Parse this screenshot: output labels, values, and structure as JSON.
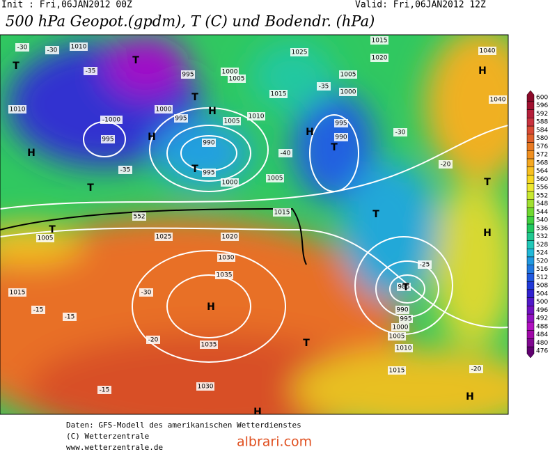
{
  "header": {
    "init": "Init : Fri,06JAN2012 00Z",
    "valid": "Valid: Fri,06JAN2012 12Z",
    "title": "500 hPa Geopot.(gpdm), T (C) und Bodendr. (hPa)"
  },
  "map_labels": [
    "1010",
    "-30",
    "-30",
    "-35",
    "995",
    "1000",
    "1005",
    "1015",
    "1025",
    "1005",
    "1000",
    "-35",
    "1015",
    "1020",
    "1040",
    "1040",
    "1010",
    "-1000",
    "995",
    "1000",
    "995",
    "1010",
    "1005",
    "990",
    "1000",
    "995",
    "1005",
    "990",
    "995",
    "-30",
    "552",
    "1015",
    "1025",
    "1020",
    "1030",
    "1035",
    "1035",
    "1030",
    "1015",
    "-15",
    "-15",
    "-20",
    "1010",
    "1015",
    "985",
    "990",
    "995",
    "1000",
    "1005",
    "-40",
    "-35",
    "-30",
    "-25",
    "-20",
    "-15",
    "-20",
    "1005"
  ],
  "pressure_centers": [
    "T",
    "T",
    "T",
    "H",
    "H",
    "H",
    "T",
    "T",
    "H",
    "T",
    "H",
    "T",
    "T",
    "H",
    "T",
    "T",
    "H",
    "H",
    "T",
    "H"
  ],
  "colorbar": {
    "labels": [
      600,
      596,
      592,
      588,
      584,
      580,
      576,
      572,
      568,
      564,
      560,
      556,
      552,
      548,
      544,
      540,
      536,
      532,
      528,
      524,
      520,
      516,
      512,
      508,
      504,
      500,
      496,
      492,
      488,
      484,
      480,
      476
    ],
    "colors": [
      "#8b0a2a",
      "#a01030",
      "#b41f3a",
      "#c8323f",
      "#d84a35",
      "#e0602a",
      "#e87a22",
      "#f09020",
      "#f5a820",
      "#f8c020",
      "#f8d820",
      "#eee830",
      "#c8e830",
      "#a0e030",
      "#70d830",
      "#40d040",
      "#20c860",
      "#20c890",
      "#20c8b8",
      "#20b8d8",
      "#2098e0",
      "#2078e0",
      "#2058e0",
      "#2038d8",
      "#3020d0",
      "#5018c8",
      "#7010c0",
      "#9010c0",
      "#b010c0",
      "#a008a8",
      "#800890",
      "#600070"
    ]
  },
  "footer": {
    "line1": "Daten: GFS-Modell des amerikanischen Wetterdienstes",
    "line2": "(C) Wetterzentrale",
    "line3": "www.wetterzentrale.de",
    "watermark": "albrari.com"
  }
}
